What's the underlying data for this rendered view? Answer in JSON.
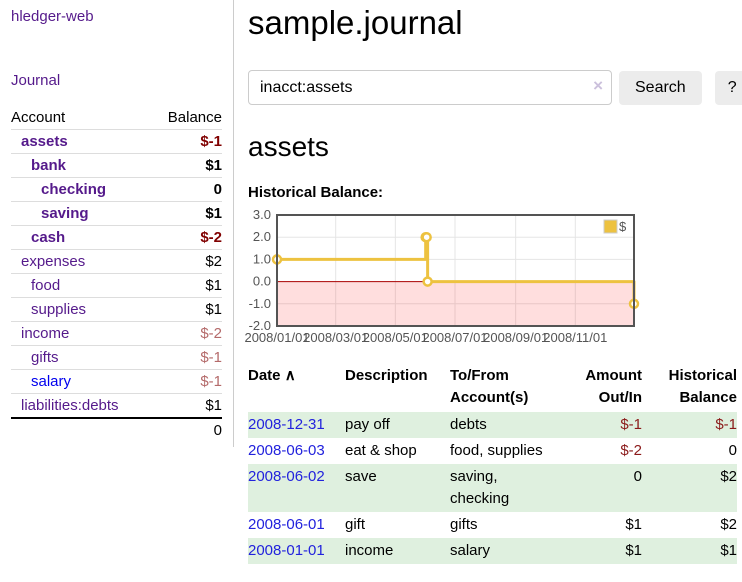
{
  "app": {
    "brand": "hledger-web",
    "nav_journal": "Journal"
  },
  "sidebar": {
    "headers": {
      "account": "Account",
      "balance": "Balance"
    },
    "accounts": [
      {
        "name": "assets",
        "indent": 0,
        "bold": true,
        "balance": "$-1"
      },
      {
        "name": "bank",
        "indent": 1,
        "bold": true,
        "balance": "$1"
      },
      {
        "name": "checking",
        "indent": 2,
        "bold": true,
        "balance": "0"
      },
      {
        "name": "saving",
        "indent": 2,
        "bold": true,
        "balance": "$1"
      },
      {
        "name": "cash",
        "indent": 1,
        "bold": true,
        "balance": "$-2"
      },
      {
        "name": "expenses",
        "indent": 0,
        "bold": false,
        "balance": "$2"
      },
      {
        "name": "food",
        "indent": 1,
        "bold": false,
        "balance": "$1"
      },
      {
        "name": "supplies",
        "indent": 1,
        "bold": false,
        "balance": "$1"
      },
      {
        "name": "income",
        "indent": 0,
        "bold": false,
        "balance": "$-2"
      },
      {
        "name": "gifts",
        "indent": 1,
        "bold": false,
        "balance": "$-1"
      },
      {
        "name": "salary",
        "indent": 1,
        "bold": false,
        "balance": "$-1",
        "unvisited": true
      },
      {
        "name": "liabilities:debts",
        "indent": 0,
        "bold": false,
        "balance": "$1"
      }
    ],
    "total": "0"
  },
  "header": {
    "title": "sample.journal"
  },
  "search": {
    "value": "inacct:assets",
    "clear_icon": "×",
    "button": "Search",
    "help": "?"
  },
  "account_page": {
    "heading": "assets",
    "chart_label": "Historical Balance:"
  },
  "chart_data": {
    "type": "step-line",
    "title": "Historical Balance",
    "series": [
      {
        "name": "$",
        "points": [
          [
            "2008-01-01",
            1
          ],
          [
            "2008-06-01",
            2
          ],
          [
            "2008-06-02",
            2
          ],
          [
            "2008-06-03",
            0
          ],
          [
            "2008-12-31",
            -1
          ]
        ]
      }
    ],
    "xlim": [
      "2008-01-01",
      "2008-12-31"
    ],
    "ylim": [
      -2,
      3
    ],
    "xticks": [
      "2008/01/01",
      "2008/03/01",
      "2008/05/01",
      "2008/07/01",
      "2008/09/01",
      "2008/11/01"
    ],
    "yticks": [
      "3.0",
      "2.0",
      "1.0",
      "0.0",
      "-1.0",
      "-2.0"
    ],
    "legend_position": "top-right",
    "grid": true,
    "colors": {
      "line": "#edc240",
      "point_fill": "#ffffff",
      "zero_line": "#aa0000",
      "negative_fill": "rgba(255,0,0,0.13)",
      "gridline": "#e5e5e5",
      "border": "#545454",
      "tick_label": "#545454",
      "legend_box_border": "#cccccc"
    }
  },
  "register": {
    "headers": {
      "date": "Date",
      "sort_icon": "∧",
      "description": "Description",
      "tofrom_line1": "To/From",
      "tofrom_line2": "Account(s)",
      "amount_line1": "Amount",
      "amount_line2": "Out/In",
      "balance_line1": "Historical",
      "balance_line2": "Balance"
    },
    "rows": [
      {
        "date": "2008-12-31",
        "description": "pay off",
        "accounts": "debts",
        "amount": "$-1",
        "balance": "$-1"
      },
      {
        "date": "2008-06-03",
        "description": "eat & shop",
        "accounts": "food, supplies",
        "amount": "$-2",
        "balance": "0"
      },
      {
        "date": "2008-06-02",
        "description": "save",
        "accounts": "saving, checking",
        "amount": "0",
        "balance": "$2"
      },
      {
        "date": "2008-06-01",
        "description": "gift",
        "accounts": "gifts",
        "amount": "$1",
        "balance": "$2"
      },
      {
        "date": "2008-01-01",
        "description": "income",
        "accounts": "salary",
        "amount": "$1",
        "balance": "$1"
      }
    ]
  }
}
